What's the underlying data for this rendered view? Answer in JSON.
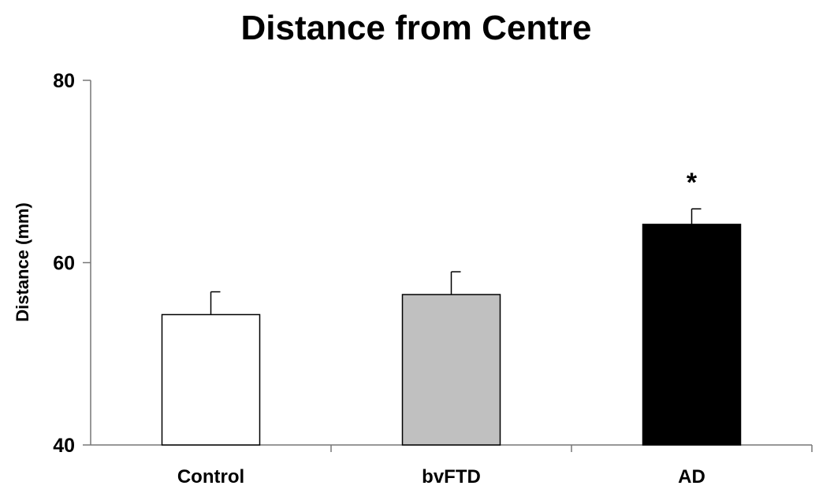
{
  "chart_data": {
    "type": "bar",
    "title": "Distance from Centre",
    "xlabel": "",
    "ylabel": "Distance (mm)",
    "ylim": [
      40,
      80
    ],
    "yticks": [
      40,
      60,
      80
    ],
    "categories": [
      "Control",
      "bvFTD",
      "AD"
    ],
    "series": [
      {
        "values": [
          54.3,
          56.5,
          64.2
        ],
        "error": [
          2.5,
          2.5,
          1.7
        ]
      }
    ],
    "bar_colors": [
      "#ffffff",
      "#c0c0c0",
      "#000000"
    ],
    "annotations": [
      {
        "category": "AD",
        "text": "*"
      }
    ],
    "grid": false,
    "legend": "none"
  }
}
